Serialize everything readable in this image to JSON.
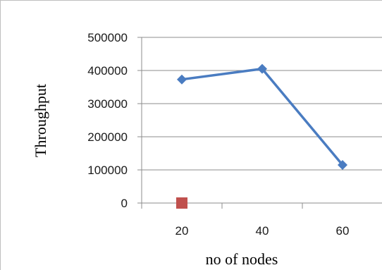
{
  "chart_data": {
    "type": "line",
    "title": "",
    "xlabel": "no of nodes",
    "ylabel": "Throughput",
    "categories": [
      "20",
      "40",
      "60"
    ],
    "yticks": [
      "0",
      "100000",
      "200000",
      "300000",
      "400000",
      "500000"
    ],
    "ylim": [
      0,
      500000
    ],
    "grid": true,
    "legend": "none",
    "series": [
      {
        "color": "#4a7cc1",
        "marker": "diamond",
        "values": [
          373000,
          405000,
          115000
        ]
      },
      {
        "color": "#c0504d",
        "marker": "square",
        "values": [
          0,
          null,
          null
        ]
      }
    ]
  }
}
